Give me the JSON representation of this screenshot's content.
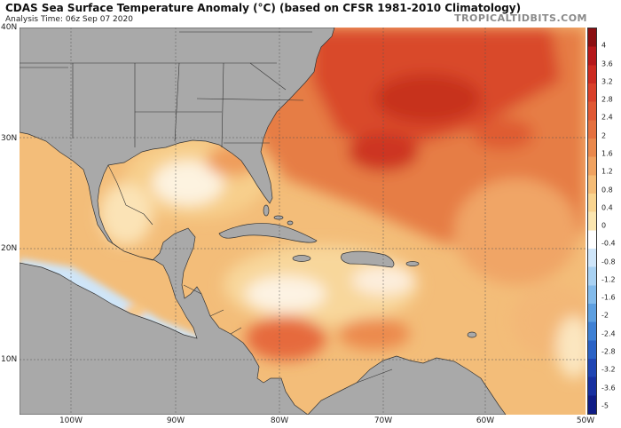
{
  "title": "CDAS Sea Surface Temperature Anomaly (°C) (based on CFSR 1981-2010 Climatology)",
  "subtitle": "Analysis Time: 06z Sep 07 2020",
  "brand": "TROPICALTIDBITS.COM",
  "lat_labels": [
    "40N",
    "30N",
    "20N",
    "10N"
  ],
  "lon_labels": [
    "100W",
    "90W",
    "80W",
    "70W",
    "60W",
    "50W"
  ],
  "colorbar": {
    "ticks": [
      "4",
      "3.6",
      "3.2",
      "2.8",
      "2.4",
      "2",
      "1.6",
      "1.2",
      "0.8",
      "0.4",
      "0",
      "-0.4",
      "-0.8",
      "-1.2",
      "-1.6",
      "-2",
      "-2.4",
      "-2.8",
      "-3.2",
      "-3.6",
      "-5"
    ],
    "colors": [
      "#8b0f12",
      "#b5181b",
      "#cc2a21",
      "#d9402a",
      "#e05834",
      "#e5703f",
      "#ea884c",
      "#f0a260",
      "#f5bc76",
      "#f9d48f",
      "#fbe6b0",
      "#ffffff",
      "#cfe6fa",
      "#a9d2f3",
      "#83bbeb",
      "#5d9fe0",
      "#3e80d4",
      "#2a62c6",
      "#1f45b3",
      "#1730a0",
      "#0f1c86"
    ]
  }
}
